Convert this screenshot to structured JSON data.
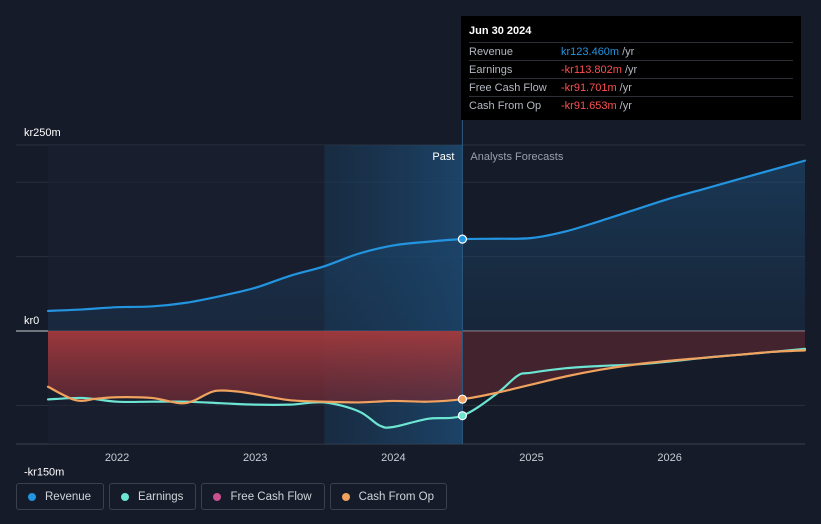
{
  "chart_data": {
    "type": "line",
    "x_axis": {
      "min": 2021.5,
      "max": 2026.98,
      "ticks": [
        "2022",
        "2023",
        "2024",
        "2025",
        "2026"
      ],
      "tick_values": [
        2022,
        2023,
        2024,
        2025,
        2026
      ]
    },
    "y_axis": {
      "min": -150,
      "max": 250,
      "labels": [
        {
          "text": "kr250m",
          "value": 250
        },
        {
          "text": "kr0",
          "value": 0
        },
        {
          "text": "-kr150m",
          "value": -150
        }
      ],
      "gridlines": [
        250,
        200,
        100,
        0,
        -100
      ]
    },
    "past_label": "Past",
    "forecast_label": "Analysts Forecasts",
    "divider_x": 2024.5,
    "past_band_start": 2023.5,
    "series": [
      {
        "name": "Revenue",
        "color": "#2394df",
        "points": [
          [
            2021.5,
            27
          ],
          [
            2021.75,
            29
          ],
          [
            2022.0,
            32
          ],
          [
            2022.25,
            33
          ],
          [
            2022.5,
            38
          ],
          [
            2022.75,
            47
          ],
          [
            2023.0,
            58
          ],
          [
            2023.25,
            74
          ],
          [
            2023.5,
            87
          ],
          [
            2023.75,
            104
          ],
          [
            2024.0,
            115
          ],
          [
            2024.25,
            120
          ],
          [
            2024.5,
            123.46
          ],
          [
            2024.75,
            124
          ],
          [
            2025.0,
            125
          ],
          [
            2025.25,
            134
          ],
          [
            2025.5,
            148
          ],
          [
            2025.75,
            163
          ],
          [
            2026.0,
            178
          ],
          [
            2026.25,
            191
          ],
          [
            2026.5,
            204
          ],
          [
            2026.75,
            217
          ],
          [
            2026.98,
            229
          ]
        ]
      },
      {
        "name": "Earnings",
        "color": "#6de5d3",
        "points": [
          [
            2021.5,
            -92
          ],
          [
            2021.75,
            -90
          ],
          [
            2022.0,
            -95
          ],
          [
            2022.25,
            -95
          ],
          [
            2022.5,
            -95
          ],
          [
            2022.75,
            -97
          ],
          [
            2023.0,
            -99
          ],
          [
            2023.25,
            -99
          ],
          [
            2023.5,
            -96
          ],
          [
            2023.75,
            -108
          ],
          [
            2023.9,
            -127
          ],
          [
            2024.0,
            -129
          ],
          [
            2024.25,
            -118
          ],
          [
            2024.5,
            -113.8
          ],
          [
            2024.75,
            -84
          ],
          [
            2024.9,
            -60
          ],
          [
            2025.0,
            -56
          ],
          [
            2025.25,
            -50
          ],
          [
            2025.5,
            -47
          ],
          [
            2025.75,
            -45
          ],
          [
            2026.0,
            -41
          ],
          [
            2026.25,
            -36
          ],
          [
            2026.5,
            -32
          ],
          [
            2026.75,
            -28
          ],
          [
            2026.98,
            -24
          ]
        ]
      },
      {
        "name": "Free Cash Flow",
        "color": "#c9518f",
        "points": []
      },
      {
        "name": "Cash From Op",
        "color": "#f0a25e",
        "points": [
          [
            2021.5,
            -75
          ],
          [
            2021.7,
            -93
          ],
          [
            2021.85,
            -91
          ],
          [
            2022.0,
            -89
          ],
          [
            2022.25,
            -90
          ],
          [
            2022.45,
            -97
          ],
          [
            2022.55,
            -94
          ],
          [
            2022.7,
            -81
          ],
          [
            2022.85,
            -81
          ],
          [
            2023.0,
            -85
          ],
          [
            2023.25,
            -93
          ],
          [
            2023.5,
            -95
          ],
          [
            2023.75,
            -96
          ],
          [
            2024.0,
            -94
          ],
          [
            2024.25,
            -95
          ],
          [
            2024.5,
            -91.65
          ],
          [
            2024.75,
            -83
          ],
          [
            2025.0,
            -72
          ],
          [
            2025.25,
            -61
          ],
          [
            2025.5,
            -52
          ],
          [
            2025.75,
            -45
          ],
          [
            2026.0,
            -40
          ],
          [
            2026.25,
            -36
          ],
          [
            2026.5,
            -32
          ],
          [
            2026.75,
            -28
          ],
          [
            2026.98,
            -26
          ]
        ]
      }
    ],
    "highlight_points": [
      {
        "series": "Revenue",
        "x": 2024.5,
        "y": 123.46,
        "color": "#2394df"
      },
      {
        "series": "Earnings",
        "x": 2024.5,
        "y": -113.8,
        "color": "#6de5d3"
      },
      {
        "series": "Cash From Op",
        "x": 2024.5,
        "y": -91.65,
        "color": "#f0a25e"
      }
    ]
  },
  "tooltip": {
    "date": "Jun 30 2024",
    "rows": [
      {
        "label": "Revenue",
        "value": "kr123.460m",
        "unit": "/yr",
        "color": "#2394df"
      },
      {
        "label": "Earnings",
        "value": "-kr113.802m",
        "unit": "/yr",
        "color": "#ff4f4f"
      },
      {
        "label": "Free Cash Flow",
        "value": "-kr91.701m",
        "unit": "/yr",
        "color": "#ff4f4f"
      },
      {
        "label": "Cash From Op",
        "value": "-kr91.653m",
        "unit": "/yr",
        "color": "#ff4f4f"
      }
    ]
  },
  "legend": [
    {
      "label": "Revenue",
      "color": "#2394df"
    },
    {
      "label": "Earnings",
      "color": "#6de5d3"
    },
    {
      "label": "Free Cash Flow",
      "color": "#c9518f"
    },
    {
      "label": "Cash From Op",
      "color": "#f0a25e"
    }
  ]
}
